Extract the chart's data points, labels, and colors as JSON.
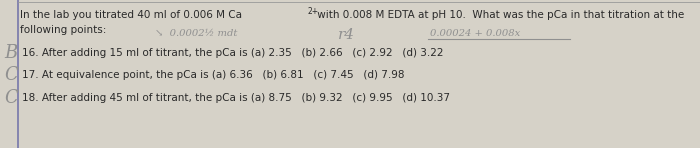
{
  "background_color": "#d6d2c8",
  "text_color": "#2a2a2a",
  "gray_color": "#909090",
  "border_color": "#8888aa",
  "figsize": [
    7.0,
    1.48
  ],
  "dpi": 100,
  "line1": "In the lab you titrated 40 ml of 0.006 M Ca",
  "line1_super": "2+",
  "line1b": " with 0.008 M EDTA at pH 10.  What was the pCa in that titration at the",
  "line2": "following points:",
  "ann1_text": "↘  0.0002½ mdt",
  "ann2_text": "r4",
  "ann3_text": "0.00024 + 0.008x",
  "q16_letter": "B",
  "q16": "16. After adding 15 ml of titrant, the pCa is (a) 2.35   (b) 2.66   (c) 2.92   (d) 3.22",
  "q17_letter": "C",
  "q17": "17. At equivalence point, the pCa is (a) 6.36   (b) 6.81   (c) 7.45   (d) 7.98",
  "q18_letter": "C",
  "q18": "18. After adding 45 ml of titrant, the pCa is (a) 8.75   (b) 9.32   (c) 9.95   (d) 10.37"
}
